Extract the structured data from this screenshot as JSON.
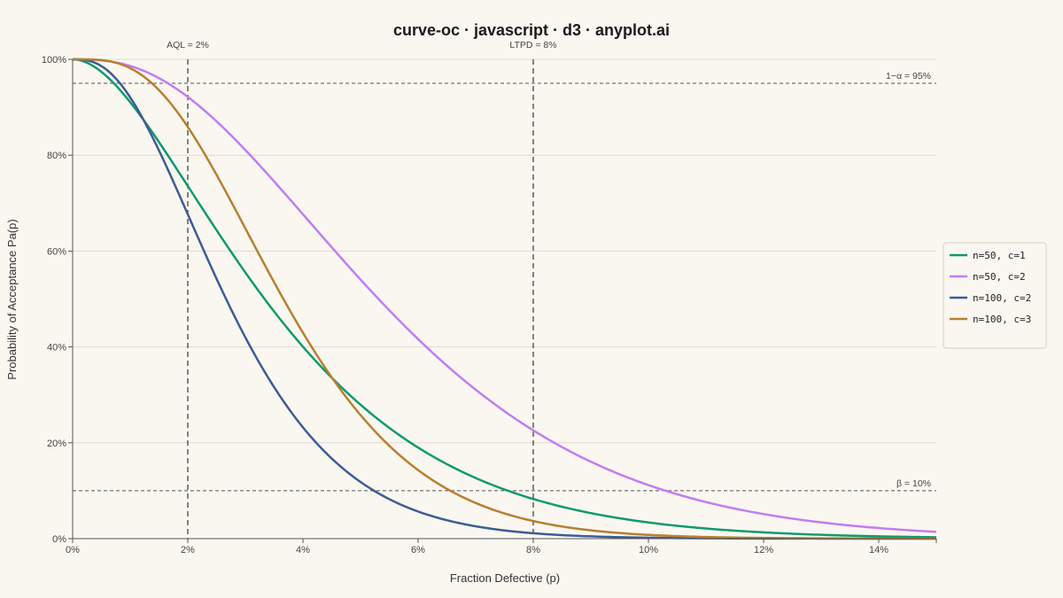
{
  "chart_data": {
    "type": "line",
    "title": "curve-oc · javascript · d3 · anyplot.ai",
    "xlabel": "Fraction Defective (p)",
    "ylabel": "Probability of Acceptance Pa(p)",
    "xlim": [
      0,
      0.15
    ],
    "ylim": [
      0,
      1
    ],
    "x_ticks": [
      "0%",
      "2%",
      "4%",
      "6%",
      "8%",
      "10%",
      "12%",
      "14%"
    ],
    "x_tick_values": [
      0,
      0.02,
      0.04,
      0.06,
      0.08,
      0.1,
      0.12,
      0.14
    ],
    "y_ticks": [
      "0%",
      "20%",
      "40%",
      "60%",
      "80%",
      "100%"
    ],
    "y_tick_values": [
      0,
      0.2,
      0.4,
      0.6,
      0.8,
      1.0
    ],
    "grid": "horizontal",
    "legend": "right",
    "series": [
      {
        "name": "n=50, c=1",
        "n": 50,
        "c": 1,
        "color": "#0e9a6e"
      },
      {
        "name": "n=50, c=2",
        "n": 50,
        "c": 2,
        "color": "#c27cf2"
      },
      {
        "name": "n=100, c=2",
        "n": 100,
        "c": 2,
        "color": "#3d5c97"
      },
      {
        "name": "n=100, c=3",
        "n": 100,
        "c": 3,
        "color": "#b87f2e"
      }
    ],
    "reference_lines": {
      "vertical": [
        {
          "label": "AQL = 2%",
          "x": 0.02
        },
        {
          "label": "LTPD = 8%",
          "x": 0.08
        }
      ],
      "horizontal": [
        {
          "label": "1−α = 95%",
          "y": 0.95
        },
        {
          "label": "β = 10%",
          "y": 0.1
        }
      ]
    }
  }
}
